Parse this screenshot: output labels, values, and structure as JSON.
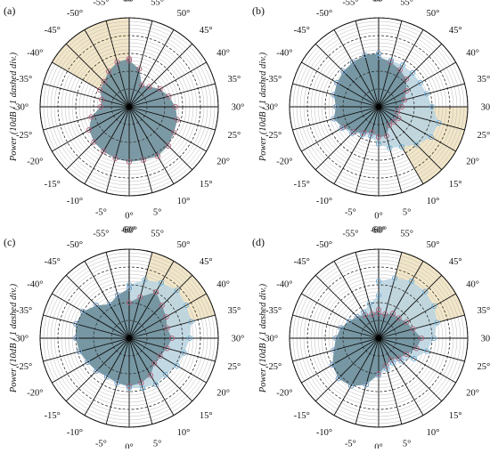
{
  "figure": {
    "ylabel": "Power (10dB / 1 dashed div.)",
    "colors": {
      "highlight": "#f2e6c8",
      "series_dark_fill": "#6e8f9b",
      "series_light_fill": "#b9d4e0",
      "marker_dark": "#b0607a",
      "marker_light": "#6aaad4",
      "axis": "#111111",
      "dashed_ring": "#333333",
      "thin_ring": "#bbbbbb"
    },
    "angle_ticks": [
      "-60°",
      "-55°",
      "-50°",
      "-45°",
      "-40°",
      "-35°",
      "-30°",
      "-25°",
      "-20°",
      "-15°",
      "-10°",
      "-5°",
      "0°",
      "5°",
      "10°",
      "15°",
      "20°",
      "25°",
      "30°",
      "35°",
      "40°",
      "45°",
      "50°",
      "55°",
      "60°"
    ]
  },
  "chart_data": [
    {
      "panel": "(a)",
      "type": "polar-area",
      "theta": [
        -60,
        -55,
        -50,
        -45,
        -40,
        -35,
        -30,
        -25,
        -20,
        -15,
        -10,
        -5,
        0,
        5,
        10,
        15,
        20,
        25,
        30,
        35,
        40,
        45,
        50,
        55,
        60
      ],
      "radial_unit": "dashed divisions (10 dB each)",
      "rlim": [
        0,
        5
      ],
      "highlight_sectors": [
        [
          -60,
          -40
        ]
      ],
      "series": [
        {
          "name": "",
          "style": "dark",
          "values": [
            2.7,
            2.6,
            2.3,
            2.0,
            1.9,
            1.6,
            1.6,
            2.2,
            2.6,
            2.8,
            2.9,
            3.0,
            3.1,
            3.1,
            3.2,
            3.1,
            2.9,
            2.8,
            2.6,
            2.3,
            2.0,
            1.6,
            1.4,
            2.2,
            2.6
          ]
        }
      ]
    },
    {
      "panel": "(b)",
      "type": "polar-area",
      "theta": [
        -60,
        -55,
        -50,
        -45,
        -40,
        -35,
        -30,
        -25,
        -20,
        -15,
        -10,
        -5,
        0,
        5,
        10,
        15,
        20,
        25,
        30,
        35,
        40,
        45,
        50,
        55,
        60
      ],
      "radial_unit": "dashed divisions (10 dB each)",
      "rlim": [
        0,
        5
      ],
      "highlight_sectors": [
        [
          10,
          30
        ]
      ],
      "series": [
        {
          "name": "",
          "style": "dark",
          "values": [
            3.0,
            3.0,
            2.9,
            2.8,
            2.7,
            2.6,
            2.4,
            2.6,
            2.3,
            2.0,
            1.7,
            1.5,
            1.7,
            1.7,
            1.2,
            1.2,
            1.3,
            1.1,
            1.3,
            1.5,
            1.8,
            2.2,
            2.4,
            2.6,
            2.8
          ]
        },
        {
          "name": "",
          "style": "light",
          "values": [
            3.0,
            3.0,
            2.9,
            2.8,
            2.7,
            2.6,
            2.4,
            2.6,
            2.4,
            2.1,
            1.8,
            1.7,
            2.1,
            2.4,
            2.6,
            3.0,
            3.4,
            3.5,
            3.0,
            2.8,
            2.7,
            2.7,
            2.7,
            2.7,
            2.8
          ]
        }
      ]
    },
    {
      "panel": "(c)",
      "type": "polar-area",
      "theta": [
        -60,
        -55,
        -50,
        -45,
        -40,
        -35,
        -30,
        -25,
        -20,
        -15,
        -10,
        -5,
        0,
        5,
        10,
        15,
        20,
        25,
        30,
        35,
        40,
        45,
        50,
        55,
        60
      ],
      "radial_unit": "dashed divisions (10 dB each)",
      "rlim": [
        0,
        5
      ],
      "highlight_sectors": [
        [
          35,
          55
        ]
      ],
      "series": [
        {
          "name": "",
          "style": "dark",
          "values": [
            2.8,
            2.5,
            2.2,
            2.6,
            3.0,
            3.1,
            3.0,
            2.9,
            2.7,
            2.6,
            2.5,
            2.6,
            2.7,
            2.6,
            2.4,
            2.0,
            2.0,
            2.2,
            2.4,
            2.2,
            2.4,
            2.6,
            3.0,
            2.4,
            2.0
          ]
        },
        {
          "name": "",
          "style": "light",
          "values": [
            2.8,
            2.5,
            2.2,
            2.6,
            3.0,
            3.1,
            3.0,
            2.9,
            2.7,
            2.6,
            2.5,
            2.6,
            2.8,
            2.9,
            3.0,
            2.9,
            3.1,
            3.2,
            3.4,
            3.6,
            3.7,
            3.8,
            3.6,
            3.4,
            3.0
          ]
        }
      ]
    },
    {
      "panel": "(d)",
      "type": "polar-area",
      "theta": [
        -60,
        -55,
        -50,
        -45,
        -40,
        -35,
        -30,
        -25,
        -20,
        -15,
        -10,
        -5,
        0,
        5,
        10,
        15,
        20,
        25,
        30,
        35,
        40,
        45,
        50,
        55,
        60
      ],
      "radial_unit": "dashed divisions (10 dB each)",
      "rlim": [
        0,
        5
      ],
      "highlight_sectors": [
        [
          35,
          55
        ]
      ],
      "series": [
        {
          "name": "",
          "style": "dark",
          "values": [
            1.6,
            1.4,
            1.5,
            1.7,
            1.9,
            2.2,
            2.4,
            2.6,
            3.0,
            3.2,
            3.1,
            2.7,
            2.0,
            1.6,
            1.4,
            1.6,
            1.8,
            2.2,
            2.4,
            2.0,
            1.8,
            1.6,
            1.6,
            1.4,
            1.4
          ]
        },
        {
          "name": "",
          "style": "light",
          "values": [
            2.4,
            2.0,
            1.7,
            1.7,
            1.9,
            2.2,
            2.4,
            2.6,
            3.0,
            3.2,
            3.1,
            2.7,
            2.1,
            1.8,
            1.6,
            1.8,
            2.3,
            2.8,
            3.1,
            3.4,
            3.6,
            3.7,
            3.7,
            3.5,
            3.2
          ]
        }
      ]
    }
  ]
}
